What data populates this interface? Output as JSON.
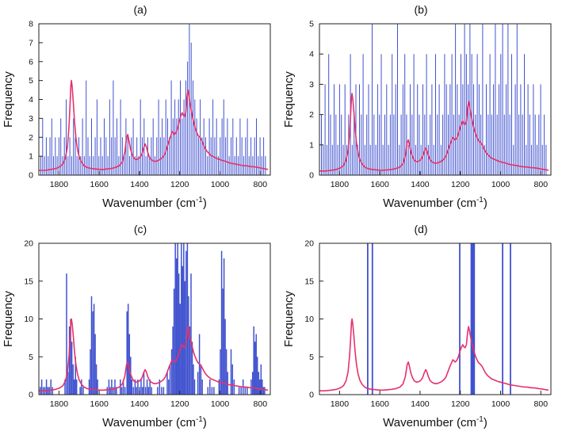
{
  "figure_caption": "Four-panel frequency vs wavenumber histograms with overlaid spectrum",
  "colors": {
    "bar": "#4052cf",
    "line": "#e6316b",
    "axis": "#222222"
  },
  "spectrum": [
    [
      1900,
      0.05
    ],
    [
      1870,
      0.05
    ],
    [
      1840,
      0.06
    ],
    [
      1815,
      0.07
    ],
    [
      1795,
      0.09
    ],
    [
      1780,
      0.12
    ],
    [
      1768,
      0.18
    ],
    [
      1758,
      0.3
    ],
    [
      1750,
      0.52
    ],
    [
      1745,
      0.75
    ],
    [
      1741,
      0.95
    ],
    [
      1738,
      1.0
    ],
    [
      1734,
      0.93
    ],
    [
      1729,
      0.78
    ],
    [
      1723,
      0.58
    ],
    [
      1716,
      0.4
    ],
    [
      1708,
      0.27
    ],
    [
      1699,
      0.19
    ],
    [
      1689,
      0.14
    ],
    [
      1676,
      0.1
    ],
    [
      1660,
      0.08
    ],
    [
      1640,
      0.07
    ],
    [
      1620,
      0.065
    ],
    [
      1600,
      0.06
    ],
    [
      1580,
      0.06
    ],
    [
      1560,
      0.065
    ],
    [
      1540,
      0.07
    ],
    [
      1520,
      0.08
    ],
    [
      1500,
      0.1
    ],
    [
      1485,
      0.14
    ],
    [
      1473,
      0.24
    ],
    [
      1464,
      0.4
    ],
    [
      1458,
      0.43
    ],
    [
      1452,
      0.36
    ],
    [
      1445,
      0.28
    ],
    [
      1437,
      0.22
    ],
    [
      1428,
      0.18
    ],
    [
      1418,
      0.165
    ],
    [
      1408,
      0.17
    ],
    [
      1398,
      0.185
    ],
    [
      1388,
      0.22
    ],
    [
      1379,
      0.29
    ],
    [
      1372,
      0.33
    ],
    [
      1366,
      0.3
    ],
    [
      1359,
      0.24
    ],
    [
      1351,
      0.19
    ],
    [
      1342,
      0.165
    ],
    [
      1332,
      0.15
    ],
    [
      1322,
      0.145
    ],
    [
      1312,
      0.15
    ],
    [
      1302,
      0.16
    ],
    [
      1292,
      0.175
    ],
    [
      1282,
      0.195
    ],
    [
      1272,
      0.23
    ],
    [
      1262,
      0.3
    ],
    [
      1252,
      0.37
    ],
    [
      1244,
      0.42
    ],
    [
      1238,
      0.46
    ],
    [
      1232,
      0.45
    ],
    [
      1226,
      0.43
    ],
    [
      1218,
      0.45
    ],
    [
      1210,
      0.5
    ],
    [
      1202,
      0.57
    ],
    [
      1194,
      0.63
    ],
    [
      1188,
      0.66
    ],
    [
      1182,
      0.63
    ],
    [
      1176,
      0.62
    ],
    [
      1170,
      0.66
    ],
    [
      1164,
      0.82
    ],
    [
      1159,
      0.9
    ],
    [
      1154,
      0.84
    ],
    [
      1149,
      0.76
    ],
    [
      1144,
      0.7
    ],
    [
      1138,
      0.63
    ],
    [
      1132,
      0.57
    ],
    [
      1125,
      0.51
    ],
    [
      1117,
      0.46
    ],
    [
      1109,
      0.42
    ],
    [
      1100,
      0.4
    ],
    [
      1091,
      0.37
    ],
    [
      1082,
      0.32
    ],
    [
      1073,
      0.28
    ],
    [
      1064,
      0.25
    ],
    [
      1055,
      0.23
    ],
    [
      1046,
      0.21
    ],
    [
      1037,
      0.2
    ],
    [
      1028,
      0.19
    ],
    [
      1019,
      0.18
    ],
    [
      1010,
      0.17
    ],
    [
      1000,
      0.165
    ],
    [
      990,
      0.155
    ],
    [
      978,
      0.15
    ],
    [
      966,
      0.14
    ],
    [
      954,
      0.13
    ],
    [
      942,
      0.125
    ],
    [
      930,
      0.12
    ],
    [
      918,
      0.115
    ],
    [
      906,
      0.11
    ],
    [
      894,
      0.105
    ],
    [
      882,
      0.1
    ],
    [
      870,
      0.1
    ],
    [
      858,
      0.095
    ],
    [
      846,
      0.09
    ],
    [
      834,
      0.09
    ],
    [
      822,
      0.085
    ],
    [
      810,
      0.08
    ],
    [
      798,
      0.075
    ],
    [
      786,
      0.07
    ],
    [
      774,
      0.065
    ],
    [
      762,
      0.06
    ]
  ],
  "chart_data": [
    {
      "type": "bar",
      "title": "(a)",
      "xlabel_main": "Wavenumber (cm",
      "xlabel_sup": "-1",
      "xlabel_close": ")",
      "ylabel": "Frequency",
      "xlim": [
        1900,
        750
      ],
      "ylim": [
        0,
        8
      ],
      "xticks": [
        1800,
        1600,
        1400,
        1200,
        1000,
        800
      ],
      "yticks": [
        0,
        1,
        2,
        3,
        4,
        5,
        6,
        7,
        8
      ],
      "line_max": 5.0,
      "bar_width": 1,
      "bars_grid": {
        "start": 1890,
        "step": 9,
        "heights": [
          1,
          3,
          1,
          2,
          1,
          2,
          3,
          1,
          2,
          1,
          2,
          3,
          1,
          2,
          4,
          1,
          2,
          1,
          3,
          2,
          1,
          2,
          1,
          3,
          1,
          5,
          2,
          1,
          3,
          1,
          2,
          4,
          1,
          2,
          1,
          3,
          2,
          1,
          4,
          2,
          5,
          2,
          3,
          1,
          4,
          2,
          1,
          3,
          2,
          1,
          2,
          3,
          1,
          2,
          1,
          4,
          2,
          3,
          1,
          2,
          1,
          2,
          3,
          1,
          2,
          4,
          2,
          3,
          2,
          4,
          3,
          2,
          5,
          3,
          4,
          3,
          4,
          5,
          3,
          4,
          5,
          6,
          8,
          7,
          5,
          4,
          3,
          2,
          4,
          2,
          3,
          2,
          1,
          3,
          2,
          4,
          2,
          3,
          1,
          2,
          3,
          4,
          2,
          3,
          1,
          2,
          3,
          1,
          2,
          1,
          3,
          2,
          1,
          2,
          3,
          1,
          2,
          1,
          2,
          3,
          1,
          2,
          1,
          2,
          1
        ]
      }
    },
    {
      "type": "bar",
      "title": "(b)",
      "xlabel_main": "Wavenumber (cm",
      "xlabel_sup": "-1",
      "xlabel_close": ")",
      "ylabel": "Frequency",
      "xlim": [
        1900,
        750
      ],
      "ylim": [
        0,
        5
      ],
      "xticks": [
        1800,
        1600,
        1400,
        1200,
        1000,
        800
      ],
      "yticks": [
        0,
        1,
        2,
        3,
        4,
        5
      ],
      "line_max": 2.7,
      "bar_width": 1,
      "bars_grid": {
        "start": 1890,
        "step": 9,
        "heights": [
          2,
          1,
          3,
          1,
          4,
          2,
          1,
          3,
          2,
          1,
          3,
          2,
          1,
          3,
          1,
          2,
          4,
          1,
          2,
          3,
          1,
          3,
          2,
          4,
          1,
          2,
          3,
          1,
          5,
          2,
          1,
          3,
          2,
          4,
          1,
          2,
          3,
          1,
          2,
          4,
          2,
          3,
          5,
          1,
          2,
          3,
          4,
          2,
          1,
          3,
          2,
          4,
          1,
          3,
          2,
          1,
          3,
          2,
          4,
          1,
          2,
          3,
          1,
          4,
          2,
          3,
          1,
          2,
          4,
          3,
          2,
          3,
          4,
          2,
          5,
          3,
          2,
          4,
          3,
          5,
          4,
          3,
          5,
          4,
          3,
          2,
          4,
          3,
          2,
          5,
          1,
          3,
          2,
          4,
          2,
          3,
          5,
          2,
          3,
          4,
          5,
          2,
          3,
          5,
          2,
          4,
          1,
          3,
          5,
          2,
          3,
          2,
          4,
          1,
          3,
          2,
          1,
          3,
          2,
          1,
          2,
          3,
          1,
          2,
          1
        ]
      }
    },
    {
      "type": "bar",
      "title": "(c)",
      "xlabel_main": "Wavenumber (cm",
      "xlabel_sup": "-1",
      "xlabel_close": ")",
      "ylabel": "Frequency",
      "xlim": [
        1900,
        750
      ],
      "ylim": [
        0,
        20
      ],
      "xticks": [
        1800,
        1600,
        1400,
        1200,
        1000,
        800
      ],
      "yticks": [
        0,
        5,
        10,
        15,
        20
      ],
      "line_max": 10,
      "bar_width": 1.5,
      "bars": [
        [
          1893,
          1
        ],
        [
          1886,
          2
        ],
        [
          1878,
          1
        ],
        [
          1870,
          1
        ],
        [
          1862,
          2
        ],
        [
          1855,
          1
        ],
        [
          1848,
          1
        ],
        [
          1840,
          2
        ],
        [
          1832,
          1
        ],
        [
          1770,
          2
        ],
        [
          1762,
          16
        ],
        [
          1755,
          3
        ],
        [
          1748,
          9
        ],
        [
          1742,
          10
        ],
        [
          1736,
          7
        ],
        [
          1730,
          4
        ],
        [
          1724,
          2
        ],
        [
          1718,
          5
        ],
        [
          1712,
          2
        ],
        [
          1695,
          1
        ],
        [
          1688,
          2
        ],
        [
          1680,
          1
        ],
        [
          1650,
          2
        ],
        [
          1644,
          6
        ],
        [
          1638,
          13
        ],
        [
          1632,
          11
        ],
        [
          1626,
          12
        ],
        [
          1620,
          8
        ],
        [
          1614,
          4
        ],
        [
          1608,
          2
        ],
        [
          1560,
          1
        ],
        [
          1552,
          2
        ],
        [
          1545,
          1
        ],
        [
          1538,
          2
        ],
        [
          1530,
          1
        ],
        [
          1522,
          2
        ],
        [
          1515,
          1
        ],
        [
          1495,
          2
        ],
        [
          1488,
          1
        ],
        [
          1480,
          2
        ],
        [
          1472,
          1
        ],
        [
          1462,
          11
        ],
        [
          1456,
          12
        ],
        [
          1450,
          8
        ],
        [
          1444,
          5
        ],
        [
          1438,
          2
        ],
        [
          1430,
          1
        ],
        [
          1422,
          2
        ],
        [
          1415,
          1
        ],
        [
          1408,
          2
        ],
        [
          1400,
          1
        ],
        [
          1392,
          2
        ],
        [
          1385,
          1
        ],
        [
          1378,
          3
        ],
        [
          1370,
          1
        ],
        [
          1362,
          2
        ],
        [
          1355,
          1
        ],
        [
          1348,
          2
        ],
        [
          1340,
          1
        ],
        [
          1310,
          1
        ],
        [
          1300,
          2
        ],
        [
          1290,
          1
        ],
        [
          1280,
          1
        ],
        [
          1262,
          3
        ],
        [
          1255,
          2
        ],
        [
          1248,
          4
        ],
        [
          1240,
          6
        ],
        [
          1234,
          9
        ],
        [
          1228,
          14
        ],
        [
          1222,
          20
        ],
        [
          1216,
          18
        ],
        [
          1210,
          20
        ],
        [
          1204,
          16
        ],
        [
          1198,
          12
        ],
        [
          1192,
          20
        ],
        [
          1186,
          17
        ],
        [
          1180,
          20
        ],
        [
          1174,
          15
        ],
        [
          1168,
          19
        ],
        [
          1162,
          20
        ],
        [
          1156,
          13
        ],
        [
          1150,
          9
        ],
        [
          1144,
          16
        ],
        [
          1138,
          7
        ],
        [
          1132,
          4
        ],
        [
          1126,
          2
        ],
        [
          1110,
          3
        ],
        [
          1102,
          8
        ],
        [
          1095,
          4
        ],
        [
          1088,
          2
        ],
        [
          1060,
          1
        ],
        [
          1050,
          2
        ],
        [
          1040,
          1
        ],
        [
          1030,
          1
        ],
        [
          1005,
          2
        ],
        [
          998,
          6
        ],
        [
          992,
          19
        ],
        [
          986,
          14
        ],
        [
          980,
          18
        ],
        [
          974,
          10
        ],
        [
          968,
          6
        ],
        [
          962,
          3
        ],
        [
          945,
          6
        ],
        [
          938,
          4
        ],
        [
          930,
          2
        ],
        [
          905,
          1
        ],
        [
          895,
          1
        ],
        [
          885,
          2
        ],
        [
          875,
          1
        ],
        [
          865,
          1
        ],
        [
          845,
          2
        ],
        [
          838,
          3
        ],
        [
          832,
          9
        ],
        [
          826,
          7
        ],
        [
          820,
          8
        ],
        [
          814,
          5
        ],
        [
          808,
          3
        ],
        [
          802,
          2
        ],
        [
          796,
          4
        ],
        [
          790,
          2
        ],
        [
          784,
          1
        ],
        [
          778,
          1
        ]
      ]
    },
    {
      "type": "bar",
      "title": "(d)",
      "xlabel_main": "Wavenumber (cm",
      "xlabel_sup": "-1",
      "xlabel_close": ")",
      "ylabel": "Frequency",
      "xlim": [
        1900,
        750
      ],
      "ylim": [
        0,
        20
      ],
      "xticks": [
        1800,
        1600,
        1400,
        1200,
        1000,
        800
      ],
      "yticks": [
        0,
        5,
        10,
        15,
        20
      ],
      "line_max": 10,
      "bar_width": 1.8,
      "bars": [
        [
          1660,
          20
        ],
        [
          1637,
          20
        ],
        [
          1203,
          20
        ],
        [
          1146,
          20
        ],
        [
          1141,
          20
        ],
        [
          1136,
          20
        ],
        [
          1131,
          20
        ],
        [
          990,
          20
        ],
        [
          951,
          20
        ]
      ]
    }
  ]
}
